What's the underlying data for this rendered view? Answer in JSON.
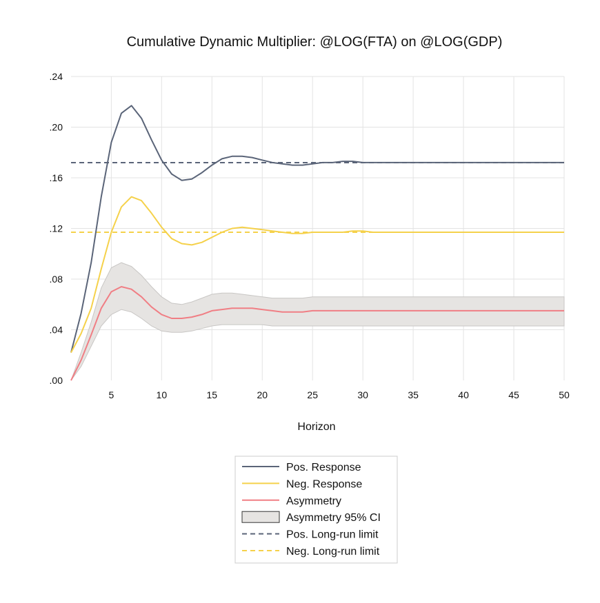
{
  "chart_data": {
    "type": "line",
    "title": "Cumulative Dynamic Multiplier: @LOG(FTA) on @LOG(GDP)",
    "xlabel": "Horizon",
    "ylabel": "",
    "xlim": [
      1,
      50
    ],
    "ylim": [
      0,
      0.24
    ],
    "x_ticks": [
      5,
      10,
      15,
      20,
      25,
      30,
      35,
      40,
      45,
      50
    ],
    "x_tick_labels": [
      "5",
      "10",
      "15",
      "20",
      "25",
      "30",
      "35",
      "40",
      "45",
      "50"
    ],
    "y_ticks": [
      0,
      0.04,
      0.08,
      0.12,
      0.16,
      0.2,
      0.24
    ],
    "y_tick_labels": [
      ".00",
      ".04",
      ".08",
      ".12",
      ".16",
      ".20",
      ".24"
    ],
    "grid": true,
    "legend_position": "bottom-center",
    "x": [
      1,
      2,
      3,
      4,
      5,
      6,
      7,
      8,
      9,
      10,
      11,
      12,
      13,
      14,
      15,
      16,
      17,
      18,
      19,
      20,
      21,
      22,
      23,
      24,
      25,
      26,
      27,
      28,
      29,
      30,
      31,
      32,
      33,
      34,
      35,
      36,
      37,
      38,
      39,
      40,
      41,
      42,
      43,
      44,
      45,
      46,
      47,
      48,
      49,
      50
    ],
    "series": [
      {
        "name": "Pos. Response",
        "style": "solid",
        "color": "#5a6478",
        "values": [
          0.022,
          0.053,
          0.093,
          0.145,
          0.188,
          0.211,
          0.217,
          0.207,
          0.19,
          0.174,
          0.163,
          0.158,
          0.159,
          0.164,
          0.17,
          0.175,
          0.177,
          0.177,
          0.176,
          0.174,
          0.172,
          0.171,
          0.17,
          0.17,
          0.171,
          0.172,
          0.172,
          0.173,
          0.173,
          0.172,
          0.172,
          0.172,
          0.172,
          0.172,
          0.172,
          0.172,
          0.172,
          0.172,
          0.172,
          0.172,
          0.172,
          0.172,
          0.172,
          0.172,
          0.172,
          0.172,
          0.172,
          0.172,
          0.172,
          0.172
        ]
      },
      {
        "name": "Neg. Response",
        "style": "solid",
        "color": "#f5d14a",
        "values": [
          0.022,
          0.037,
          0.057,
          0.088,
          0.117,
          0.137,
          0.145,
          0.142,
          0.132,
          0.121,
          0.112,
          0.108,
          0.107,
          0.109,
          0.113,
          0.117,
          0.12,
          0.121,
          0.12,
          0.119,
          0.118,
          0.117,
          0.116,
          0.116,
          0.117,
          0.117,
          0.117,
          0.117,
          0.118,
          0.118,
          0.117,
          0.117,
          0.117,
          0.117,
          0.117,
          0.117,
          0.117,
          0.117,
          0.117,
          0.117,
          0.117,
          0.117,
          0.117,
          0.117,
          0.117,
          0.117,
          0.117,
          0.117,
          0.117,
          0.117
        ]
      },
      {
        "name": "Asymmetry",
        "style": "solid",
        "color": "#f07e84",
        "values": [
          0.0,
          0.016,
          0.036,
          0.057,
          0.07,
          0.074,
          0.072,
          0.066,
          0.058,
          0.052,
          0.049,
          0.049,
          0.05,
          0.052,
          0.055,
          0.056,
          0.057,
          0.057,
          0.057,
          0.056,
          0.055,
          0.054,
          0.054,
          0.054,
          0.055,
          0.055,
          0.055,
          0.055,
          0.055,
          0.055,
          0.055,
          0.055,
          0.055,
          0.055,
          0.055,
          0.055,
          0.055,
          0.055,
          0.055,
          0.055,
          0.055,
          0.055,
          0.055,
          0.055,
          0.055,
          0.055,
          0.055,
          0.055,
          0.055,
          0.055
        ]
      },
      {
        "name": "Asymmetry 95% CI",
        "style": "band",
        "color": "#e6e4e2",
        "lower": [
          0.0,
          0.011,
          0.027,
          0.043,
          0.052,
          0.056,
          0.054,
          0.049,
          0.043,
          0.039,
          0.038,
          0.038,
          0.039,
          0.041,
          0.043,
          0.044,
          0.044,
          0.044,
          0.044,
          0.044,
          0.043,
          0.043,
          0.043,
          0.043,
          0.043,
          0.043,
          0.043,
          0.043,
          0.043,
          0.043,
          0.043,
          0.043,
          0.043,
          0.043,
          0.043,
          0.043,
          0.043,
          0.043,
          0.043,
          0.043,
          0.043,
          0.043,
          0.043,
          0.043,
          0.043,
          0.043,
          0.043,
          0.043,
          0.043,
          0.043
        ],
        "upper": [
          0.0,
          0.022,
          0.046,
          0.073,
          0.089,
          0.093,
          0.09,
          0.083,
          0.074,
          0.066,
          0.061,
          0.06,
          0.062,
          0.065,
          0.068,
          0.069,
          0.069,
          0.068,
          0.067,
          0.066,
          0.065,
          0.065,
          0.065,
          0.065,
          0.066,
          0.066,
          0.066,
          0.066,
          0.066,
          0.066,
          0.066,
          0.066,
          0.066,
          0.066,
          0.066,
          0.066,
          0.066,
          0.066,
          0.066,
          0.066,
          0.066,
          0.066,
          0.066,
          0.066,
          0.066,
          0.066,
          0.066,
          0.066,
          0.066,
          0.066
        ]
      },
      {
        "name": "Pos. Long-run limit",
        "style": "dashed",
        "color": "#5a6478",
        "value": 0.172
      },
      {
        "name": "Neg. Long-run limit",
        "style": "dashed",
        "color": "#f5d14a",
        "value": 0.117
      }
    ]
  }
}
